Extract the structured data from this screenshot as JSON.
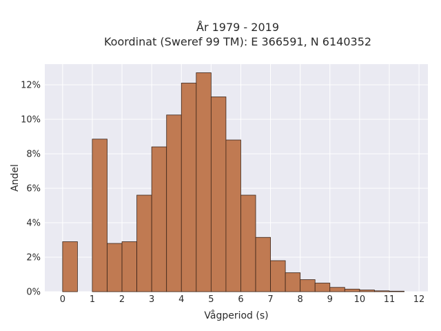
{
  "chart_data": {
    "type": "bar",
    "title_line1": "År 1979 - 2019",
    "title_line2": "Koordinat (Sweref 99 TM): E 366591, N 6140352",
    "xlabel": "Vågperiod (s)",
    "ylabel": "Andel",
    "bar_color": "#c07a52",
    "bar_edge": "#3a2418",
    "plot_bg": "#eaeaf2",
    "grid": true,
    "xlim": [
      -0.6,
      12.3
    ],
    "ylim": [
      0,
      13.2
    ],
    "x_ticks": [
      0,
      1,
      2,
      3,
      4,
      5,
      6,
      7,
      8,
      9,
      10,
      11,
      12
    ],
    "x_tick_labels": [
      "0",
      "1",
      "2",
      "3",
      "4",
      "5",
      "6",
      "7",
      "8",
      "9",
      "10",
      "11",
      "12"
    ],
    "y_ticks": [
      0,
      2,
      4,
      6,
      8,
      10,
      12
    ],
    "y_tick_labels": [
      "0%",
      "2%",
      "4%",
      "6%",
      "8%",
      "10%",
      "12%"
    ],
    "bin_width": 0.5,
    "bin_left_edges": [
      0,
      1,
      1.5,
      2,
      2.5,
      3,
      3.5,
      4,
      4.5,
      5,
      5.5,
      6,
      6.5,
      7,
      7.5,
      8,
      8.5,
      9,
      9.5,
      10,
      10.5,
      11
    ],
    "values": [
      2.9,
      8.85,
      2.8,
      2.9,
      5.6,
      8.4,
      10.25,
      12.1,
      12.7,
      11.3,
      8.8,
      5.6,
      3.15,
      1.8,
      1.1,
      0.7,
      0.5,
      0.25,
      0.15,
      0.1,
      0.05,
      0.03
    ]
  }
}
